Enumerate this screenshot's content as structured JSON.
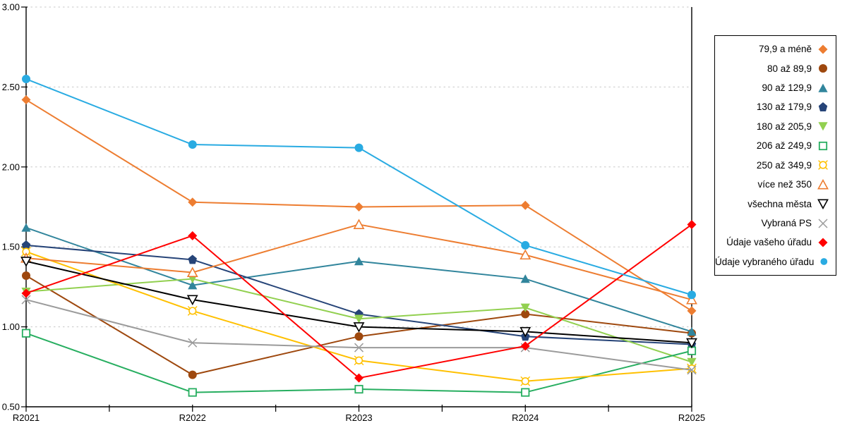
{
  "chart_data": {
    "type": "line",
    "title": "",
    "xlabel": "",
    "ylabel": "",
    "categories": [
      "R2021",
      "R2022",
      "R2023",
      "R2024",
      "R2025"
    ],
    "ylim": [
      0.5,
      3.0
    ],
    "yticks": [
      {
        "v": 3.0,
        "label": "3.00"
      },
      {
        "v": 2.5,
        "label": "2.50"
      },
      {
        "v": 2.0,
        "label": "2.00"
      },
      {
        "v": 1.5,
        "label": "1.50"
      },
      {
        "v": 1.0,
        "label": "1.00"
      },
      {
        "v": 0.5,
        "label": "0.50"
      }
    ],
    "grid": "horizontal-dashed",
    "grid_color": "#c8c8c8",
    "axis_color": "#000000",
    "legend_position": "right",
    "series": [
      {
        "name": "79,9 a méně",
        "color": "#ED7D31",
        "marker": "diamond-filled",
        "values": [
          2.42,
          1.78,
          1.75,
          1.76,
          1.1
        ]
      },
      {
        "name": "80 až 89,9",
        "color": "#9E480E",
        "marker": "circle-filled",
        "values": [
          1.32,
          0.7,
          0.94,
          1.08,
          0.96
        ]
      },
      {
        "name": "90 až 129,9",
        "color": "#31859C",
        "marker": "triangle-up-filled",
        "values": [
          1.62,
          1.26,
          1.41,
          1.3,
          0.97
        ]
      },
      {
        "name": "130 až 179,9",
        "color": "#264478",
        "marker": "pentagon-filled",
        "values": [
          1.51,
          1.42,
          1.08,
          0.94,
          0.89
        ]
      },
      {
        "name": "180 až 205,9",
        "color": "#92D050",
        "marker": "triangle-down-filled",
        "values": [
          1.22,
          1.3,
          1.05,
          1.12,
          0.78
        ]
      },
      {
        "name": "206 až 249,9",
        "color": "#27AE60",
        "marker": "square-open",
        "values": [
          0.96,
          0.59,
          0.61,
          0.59,
          0.85
        ]
      },
      {
        "name": "250 až 349,9",
        "color": "#FFC000",
        "marker": "circle-open",
        "values": [
          1.47,
          1.1,
          0.79,
          0.66,
          0.74
        ]
      },
      {
        "name": "více než 350",
        "color": "#ED7D31",
        "marker": "triangle-up-open",
        "values": [
          1.43,
          1.34,
          1.64,
          1.45,
          1.17
        ]
      },
      {
        "name": "všechna města",
        "color": "#000000",
        "marker": "triangle-down-open",
        "values": [
          1.41,
          1.17,
          1.0,
          0.97,
          0.9
        ]
      },
      {
        "name": "Vybraná PS",
        "color": "#9B9B9B",
        "marker": "x",
        "values": [
          1.17,
          0.9,
          0.87,
          0.87,
          0.73
        ]
      },
      {
        "name": "Údaje vašeho úřadu",
        "color": "#FF0000",
        "marker": "diamond-filled",
        "values": [
          1.21,
          1.57,
          0.68,
          0.88,
          1.64
        ]
      },
      {
        "name": "Údaje vybraného úřadu",
        "color": "#29ABE2",
        "marker": "circle-filled",
        "values": [
          2.55,
          2.14,
          2.12,
          1.51,
          1.2
        ]
      }
    ]
  }
}
